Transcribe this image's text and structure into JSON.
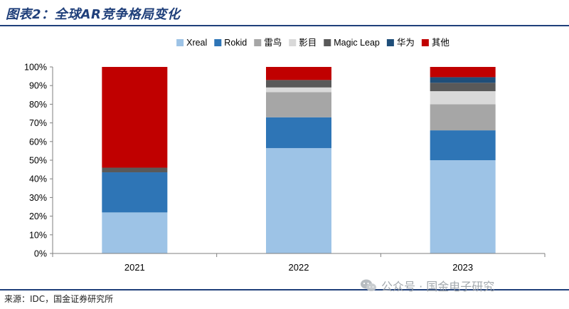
{
  "figure": {
    "title": "图表2：全球AR竞争格局变化",
    "source": "来源：IDC，国金证券研究所",
    "watermark": "公众号 · 国金电子研究"
  },
  "chart_data": {
    "type": "bar",
    "stacked": true,
    "categories": [
      "2021",
      "2022",
      "2023"
    ],
    "ylim": [
      0,
      100
    ],
    "yticks": [
      "0%",
      "10%",
      "20%",
      "30%",
      "40%",
      "50%",
      "60%",
      "70%",
      "80%",
      "90%",
      "100%"
    ],
    "legend_position": "top",
    "series": [
      {
        "name": "Xreal",
        "color": "#9dc3e6",
        "values": [
          22,
          56.5,
          50
        ]
      },
      {
        "name": "Rokid",
        "color": "#2e75b6",
        "values": [
          21.5,
          16.5,
          16
        ]
      },
      {
        "name": "雷鸟",
        "color": "#a6a6a6",
        "values": [
          0,
          13.5,
          14
        ]
      },
      {
        "name": "影目",
        "color": "#d9d9d9",
        "values": [
          0,
          2.5,
          7
        ]
      },
      {
        "name": "Magic Leap",
        "color": "#595959",
        "values": [
          2.5,
          4,
          4.5
        ]
      },
      {
        "name": "华为",
        "color": "#1f4e79",
        "values": [
          0,
          0,
          3
        ]
      },
      {
        "name": "其他",
        "color": "#c00000",
        "values": [
          54,
          7,
          5.5
        ]
      }
    ]
  }
}
